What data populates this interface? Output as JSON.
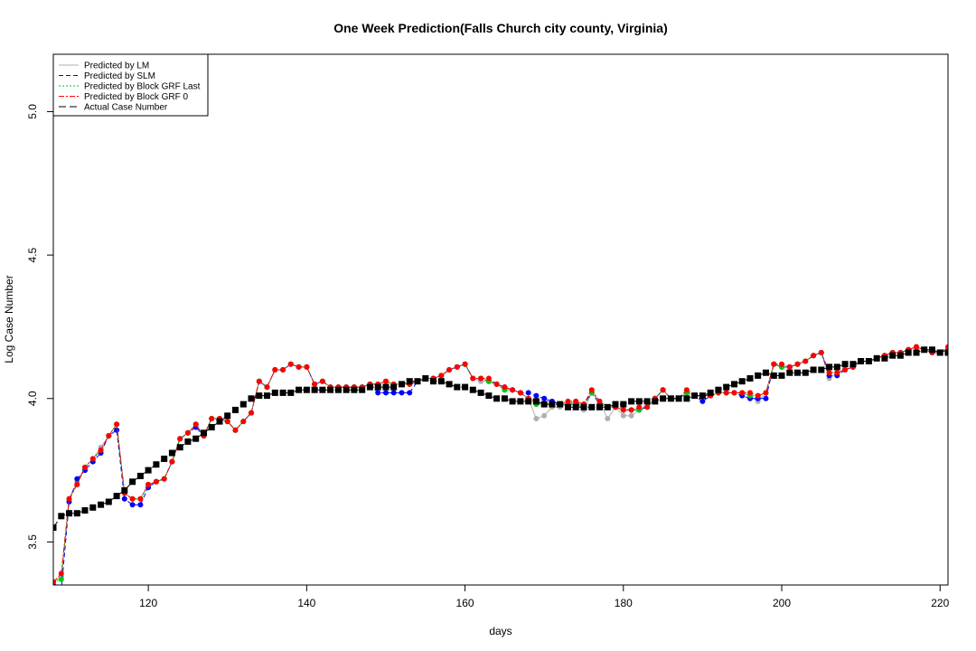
{
  "chart_data": {
    "type": "line",
    "title": "One Week Prediction(Falls Church city county, Virginia)",
    "xlabel": "days",
    "ylabel": "Log Case Number",
    "xlim": [
      108,
      221
    ],
    "ylim": [
      3.35,
      5.2
    ],
    "xticks": [
      120,
      140,
      160,
      180,
      200,
      220
    ],
    "yticks": [
      3.5,
      4.0,
      4.5,
      5.0
    ],
    "grid": false,
    "legend_position": "top-left",
    "x": [
      108,
      109,
      110,
      111,
      112,
      113,
      114,
      115,
      116,
      117,
      118,
      119,
      120,
      121,
      122,
      123,
      124,
      125,
      126,
      127,
      128,
      129,
      130,
      131,
      132,
      133,
      134,
      135,
      136,
      137,
      138,
      139,
      140,
      141,
      142,
      143,
      144,
      145,
      146,
      147,
      148,
      149,
      150,
      151,
      152,
      153,
      154,
      155,
      156,
      157,
      158,
      159,
      160,
      161,
      162,
      163,
      164,
      165,
      166,
      167,
      168,
      169,
      170,
      171,
      172,
      173,
      174,
      175,
      176,
      177,
      178,
      179,
      180,
      181,
      182,
      183,
      184,
      185,
      186,
      187,
      188,
      189,
      190,
      191,
      192,
      193,
      194,
      195,
      196,
      197,
      198,
      199,
      200,
      201,
      202,
      203,
      204,
      205,
      206,
      207,
      208,
      209,
      210,
      211,
      212,
      213,
      214,
      215,
      216,
      217,
      218,
      219,
      220,
      221
    ],
    "series": [
      {
        "name": "Predicted by LM",
        "color": "#b0b0b0",
        "values": [
          3.36,
          3.38,
          3.65,
          3.71,
          3.76,
          3.79,
          3.83,
          3.87,
          3.91,
          3.67,
          3.65,
          3.65,
          3.7,
          3.71,
          3.72,
          3.78,
          3.86,
          3.88,
          3.91,
          3.87,
          3.93,
          3.93,
          3.92,
          3.89,
          3.92,
          3.95,
          4.06,
          4.04,
          4.1,
          4.1,
          4.12,
          4.11,
          4.11,
          4.05,
          4.06,
          4.04,
          4.04,
          4.04,
          4.04,
          4.04,
          4.05,
          4.05,
          4.06,
          4.05,
          4.05,
          4.05,
          4.06,
          4.07,
          4.07,
          4.08,
          4.1,
          4.11,
          4.12,
          4.07,
          4.06,
          4.06,
          4.05,
          4.03,
          4.03,
          4.02,
          4.0,
          3.93,
          3.94,
          3.97,
          3.97,
          3.98,
          3.99,
          3.96,
          4.02,
          3.99,
          3.93,
          3.97,
          3.94,
          3.94,
          3.96,
          3.97,
          4.0,
          4.03,
          4.0,
          4.0,
          4.02,
          4.01,
          4.01,
          4.01,
          4.02,
          4.02,
          4.02,
          4.02,
          4.01,
          3.99,
          4.02,
          4.12,
          4.11,
          4.11,
          4.12,
          4.13,
          4.15,
          4.16,
          4.07,
          4.09,
          4.1,
          4.11,
          4.13,
          4.13,
          4.14,
          4.15,
          4.16,
          4.16,
          4.17,
          4.18,
          4.17,
          4.16,
          4.16,
          4.17
        ]
      },
      {
        "name": "Predicted by SLM",
        "color": "#0000ff",
        "values": [
          3.35,
          3.33,
          3.64,
          3.72,
          3.75,
          3.78,
          3.81,
          3.87,
          3.89,
          3.65,
          3.63,
          3.63,
          3.69,
          3.71,
          3.72,
          3.78,
          3.86,
          3.88,
          3.9,
          3.87,
          3.93,
          3.93,
          3.92,
          3.89,
          3.92,
          3.95,
          4.06,
          4.04,
          4.1,
          4.1,
          4.12,
          4.11,
          4.11,
          4.05,
          4.06,
          4.04,
          4.04,
          4.04,
          4.04,
          4.04,
          4.05,
          4.02,
          4.02,
          4.02,
          4.02,
          4.02,
          4.06,
          4.07,
          4.07,
          4.08,
          4.1,
          4.11,
          4.12,
          4.07,
          4.07,
          4.06,
          4.05,
          4.04,
          4.03,
          4.02,
          4.02,
          4.01,
          4.0,
          3.99,
          3.98,
          3.98,
          3.98,
          3.98,
          4.02,
          3.98,
          3.97,
          3.97,
          3.96,
          3.96,
          3.96,
          3.97,
          4.0,
          4.03,
          4.0,
          4.0,
          4.02,
          4.01,
          3.99,
          4.01,
          4.02,
          4.02,
          4.02,
          4.01,
          4.0,
          4.0,
          4.0,
          4.12,
          4.11,
          4.11,
          4.12,
          4.13,
          4.15,
          4.16,
          4.08,
          4.08,
          4.1,
          4.11,
          4.13,
          4.13,
          4.14,
          4.15,
          4.16,
          4.16,
          4.17,
          4.18,
          4.17,
          4.16,
          4.16,
          4.17
        ]
      },
      {
        "name": "Predicted by Block GRF Last",
        "color": "#00cc00",
        "values": [
          3.36,
          3.37,
          3.65,
          3.7,
          3.76,
          3.79,
          3.82,
          3.87,
          3.91,
          3.67,
          3.65,
          3.65,
          3.7,
          3.71,
          3.72,
          3.78,
          3.86,
          3.88,
          3.91,
          3.87,
          3.93,
          3.93,
          3.92,
          3.89,
          3.92,
          3.95,
          4.06,
          4.04,
          4.1,
          4.1,
          4.12,
          4.11,
          4.11,
          4.05,
          4.06,
          4.04,
          4.04,
          4.04,
          4.04,
          4.04,
          4.05,
          4.05,
          4.06,
          4.05,
          4.05,
          4.05,
          4.06,
          4.07,
          4.07,
          4.08,
          4.1,
          4.11,
          4.12,
          4.07,
          4.07,
          4.06,
          4.05,
          4.03,
          4.03,
          4.02,
          4.0,
          3.98,
          3.98,
          3.98,
          3.98,
          3.98,
          3.99,
          3.97,
          4.02,
          3.99,
          3.97,
          3.97,
          3.96,
          3.96,
          3.96,
          3.97,
          4.0,
          4.03,
          4.0,
          4.0,
          4.02,
          4.01,
          4.01,
          4.01,
          4.02,
          4.02,
          4.02,
          4.02,
          4.01,
          4.01,
          4.02,
          4.12,
          4.11,
          4.11,
          4.12,
          4.13,
          4.15,
          4.16,
          4.09,
          4.09,
          4.1,
          4.11,
          4.13,
          4.13,
          4.14,
          4.15,
          4.16,
          4.16,
          4.17,
          4.18,
          4.17,
          4.16,
          4.16,
          4.17
        ]
      },
      {
        "name": "Predicted by Block GRF 0",
        "color": "#ff0000",
        "values": [
          3.36,
          3.39,
          3.65,
          3.7,
          3.76,
          3.79,
          3.82,
          3.87,
          3.91,
          3.67,
          3.65,
          3.65,
          3.7,
          3.71,
          3.72,
          3.78,
          3.86,
          3.88,
          3.91,
          3.87,
          3.93,
          3.93,
          3.92,
          3.89,
          3.92,
          3.95,
          4.06,
          4.04,
          4.1,
          4.1,
          4.12,
          4.11,
          4.11,
          4.05,
          4.06,
          4.04,
          4.04,
          4.04,
          4.04,
          4.04,
          4.05,
          4.05,
          4.06,
          4.05,
          4.05,
          4.05,
          4.06,
          4.07,
          4.07,
          4.08,
          4.1,
          4.11,
          4.12,
          4.07,
          4.07,
          4.07,
          4.05,
          4.04,
          4.03,
          4.02,
          4.0,
          3.99,
          3.98,
          3.98,
          3.98,
          3.99,
          3.99,
          3.98,
          4.03,
          3.99,
          3.97,
          3.97,
          3.96,
          3.96,
          3.97,
          3.97,
          4.0,
          4.03,
          4.0,
          4.0,
          4.03,
          4.01,
          4.01,
          4.01,
          4.02,
          4.02,
          4.02,
          4.02,
          4.02,
          4.01,
          4.02,
          4.12,
          4.12,
          4.11,
          4.12,
          4.13,
          4.15,
          4.16,
          4.09,
          4.09,
          4.1,
          4.11,
          4.13,
          4.13,
          4.14,
          4.15,
          4.16,
          4.16,
          4.17,
          4.18,
          4.17,
          4.16,
          4.16,
          4.18
        ]
      },
      {
        "name": "Actual Case Number",
        "color": "#000000",
        "values": [
          3.55,
          3.59,
          3.6,
          3.6,
          3.61,
          3.62,
          3.63,
          3.64,
          3.66,
          3.68,
          3.71,
          3.73,
          3.75,
          3.77,
          3.79,
          3.81,
          3.83,
          3.85,
          3.86,
          3.88,
          3.9,
          3.92,
          3.94,
          3.96,
          3.98,
          4.0,
          4.01,
          4.01,
          4.02,
          4.02,
          4.02,
          4.03,
          4.03,
          4.03,
          4.03,
          4.03,
          4.03,
          4.03,
          4.03,
          4.03,
          4.04,
          4.04,
          4.04,
          4.04,
          4.05,
          4.06,
          4.06,
          4.07,
          4.06,
          4.06,
          4.05,
          4.04,
          4.04,
          4.03,
          4.02,
          4.01,
          4.0,
          4.0,
          3.99,
          3.99,
          3.99,
          3.99,
          3.98,
          3.98,
          3.98,
          3.97,
          3.97,
          3.97,
          3.97,
          3.97,
          3.97,
          3.98,
          3.98,
          3.99,
          3.99,
          3.99,
          3.99,
          4.0,
          4.0,
          4.0,
          4.0,
          4.01,
          4.01,
          4.02,
          4.03,
          4.04,
          4.05,
          4.06,
          4.07,
          4.08,
          4.09,
          4.08,
          4.08,
          4.09,
          4.09,
          4.09,
          4.1,
          4.1,
          4.11,
          4.11,
          4.12,
          4.12,
          4.13,
          4.13,
          4.14,
          4.14,
          4.15,
          4.15,
          4.16,
          4.16,
          4.17,
          4.17,
          4.16,
          4.16
        ]
      }
    ]
  }
}
